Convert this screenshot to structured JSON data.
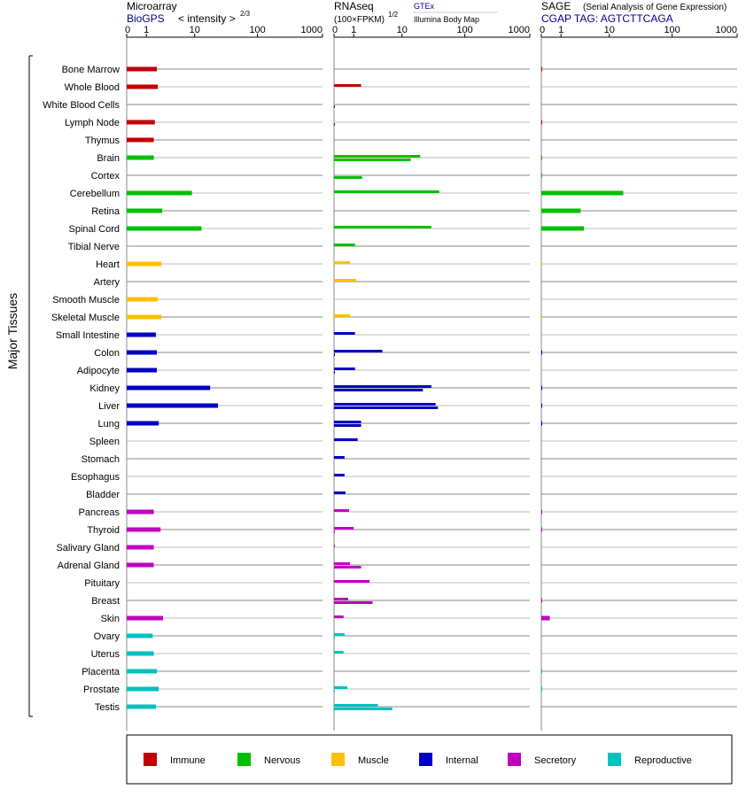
{
  "headers": {
    "microarray": {
      "title": "Microarray",
      "source": "BioGPS",
      "metric": "< intensity >",
      "metric_exp": "2/3"
    },
    "rnaseq": {
      "title": "RNAseq",
      "metric": "(100×FPKM)",
      "metric_exp": "1/2",
      "source_a": "GTEx",
      "source_b": "Illumina Body Map"
    },
    "sage": {
      "title": "SAGE",
      "subtitle": "(Serial Analysis of Gene Expression)",
      "tag": "CGAP TAG: AGTCTTCAGA"
    }
  },
  "axis_ticks": [
    "0",
    "1",
    "10",
    "100",
    "1000"
  ],
  "y_group_label": "Major Tissues",
  "legend": [
    {
      "label": "Immune",
      "color": "#c00000"
    },
    {
      "label": "Nervous",
      "color": "#00c000"
    },
    {
      "label": "Muscle",
      "color": "#ffc000"
    },
    {
      "label": "Internal",
      "color": "#0000c0"
    },
    {
      "label": "Secretory",
      "color": "#c000c0"
    },
    {
      "label": "Reproductive",
      "color": "#00c0c0"
    }
  ],
  "chart_data": {
    "type": "bar",
    "x_scale": "log1p",
    "xlim": [
      0,
      1000
    ],
    "panels": [
      "Microarray",
      "RNAseq GTEx",
      "RNAseq Illumina Body Map",
      "SAGE"
    ],
    "tissues": [
      {
        "name": "Bone Marrow",
        "system": "Immune",
        "microarray": 1.9,
        "gtex": null,
        "ibm": null,
        "sage": 0.02
      },
      {
        "name": "Whole Blood",
        "system": "Immune",
        "microarray": 2.0,
        "gtex": 1.6,
        "ibm": null,
        "sage": null
      },
      {
        "name": "White Blood Cells",
        "system": "Immune",
        "microarray": null,
        "gtex": null,
        "ibm": 0.02,
        "sage": null
      },
      {
        "name": "Lymph Node",
        "system": "Immune",
        "microarray": 1.7,
        "gtex": null,
        "ibm": 0.02,
        "sage": 0.02
      },
      {
        "name": "Thymus",
        "system": "Immune",
        "microarray": 1.6,
        "gtex": null,
        "ibm": null,
        "sage": null
      },
      {
        "name": "Brain",
        "system": "Nervous",
        "microarray": 1.6,
        "gtex": 20,
        "ibm": 14,
        "sage": 0.01
      },
      {
        "name": "Cortex",
        "system": "Nervous",
        "microarray": null,
        "gtex": null,
        "ibm": 1.7,
        "sage": 0.01
      },
      {
        "name": "Cerebellum",
        "system": "Nervous",
        "microarray": 9,
        "gtex": 40,
        "ibm": null,
        "sage": 17
      },
      {
        "name": "Retina",
        "system": "Nervous",
        "microarray": 2.5,
        "gtex": null,
        "ibm": null,
        "sage": 3.0
      },
      {
        "name": "Spinal Cord",
        "system": "Nervous",
        "microarray": 13,
        "gtex": 30,
        "ibm": null,
        "sage": 3.5
      },
      {
        "name": "Tibial Nerve",
        "system": "Nervous",
        "microarray": null,
        "gtex": 1.1,
        "ibm": null,
        "sage": null
      },
      {
        "name": "Heart",
        "system": "Muscle",
        "microarray": 2.4,
        "gtex": 0.75,
        "ibm": 0.02,
        "sage": 0.01
      },
      {
        "name": "Artery",
        "system": "Muscle",
        "microarray": null,
        "gtex": 1.2,
        "ibm": null,
        "sage": null
      },
      {
        "name": "Smooth Muscle",
        "system": "Muscle",
        "microarray": 2.0,
        "gtex": null,
        "ibm": null,
        "sage": null
      },
      {
        "name": "Skeletal Muscle",
        "system": "Muscle",
        "microarray": 2.4,
        "gtex": 0.75,
        "ibm": 0.02,
        "sage": 0.01
      },
      {
        "name": "Small Intestine",
        "system": "Internal",
        "microarray": 1.8,
        "gtex": 1.1,
        "ibm": null,
        "sage": null
      },
      {
        "name": "Colon",
        "system": "Internal",
        "microarray": 1.9,
        "gtex": 4.5,
        "ibm": 0.03,
        "sage": 0.02
      },
      {
        "name": "Adipocyte",
        "system": "Internal",
        "microarray": 1.9,
        "gtex": 1.1,
        "ibm": 0.03,
        "sage": null
      },
      {
        "name": "Kidney",
        "system": "Internal",
        "microarray": 18,
        "gtex": 30,
        "ibm": 22,
        "sage": 0.02
      },
      {
        "name": "Liver",
        "system": "Internal",
        "microarray": 24,
        "gtex": 35,
        "ibm": 38,
        "sage": 0.03
      },
      {
        "name": "Lung",
        "system": "Internal",
        "microarray": 2.1,
        "gtex": 1.6,
        "ibm": 1.6,
        "sage": 0.02
      },
      {
        "name": "Spleen",
        "system": "Internal",
        "microarray": null,
        "gtex": 1.3,
        "ibm": null,
        "sage": null
      },
      {
        "name": "Stomach",
        "system": "Internal",
        "microarray": null,
        "gtex": 0.45,
        "ibm": null,
        "sage": null
      },
      {
        "name": "Esophagus",
        "system": "Internal",
        "microarray": null,
        "gtex": 0.45,
        "ibm": null,
        "sage": null
      },
      {
        "name": "Bladder",
        "system": "Internal",
        "microarray": null,
        "gtex": 0.5,
        "ibm": null,
        "sage": null
      },
      {
        "name": "Pancreas",
        "system": "Secretory",
        "microarray": 1.6,
        "gtex": 0.7,
        "ibm": null,
        "sage": 0.02
      },
      {
        "name": "Thyroid",
        "system": "Secretory",
        "microarray": 2.3,
        "gtex": 1.0,
        "ibm": 0.02,
        "sage": 0.02
      },
      {
        "name": "Salivary Gland",
        "system": "Secretory",
        "microarray": 1.6,
        "gtex": 0.03,
        "ibm": null,
        "sage": null
      },
      {
        "name": "Adrenal Gland",
        "system": "Secretory",
        "microarray": 1.6,
        "gtex": 0.75,
        "ibm": 1.6,
        "sage": null
      },
      {
        "name": "Pituitary",
        "system": "Secretory",
        "microarray": null,
        "gtex": 2.5,
        "ibm": null,
        "sage": null
      },
      {
        "name": "Breast",
        "system": "Secretory",
        "microarray": null,
        "gtex": 0.65,
        "ibm": 2.9,
        "sage": 0.02
      },
      {
        "name": "Skin",
        "system": "Secretory",
        "microarray": 2.6,
        "gtex": 0.4,
        "ibm": null,
        "sage": 0.35
      },
      {
        "name": "Ovary",
        "system": "Reproductive",
        "microarray": 1.5,
        "gtex": 0.45,
        "ibm": 0.02,
        "sage": null
      },
      {
        "name": "Uterus",
        "system": "Reproductive",
        "microarray": 1.6,
        "gtex": 0.4,
        "ibm": null,
        "sage": null
      },
      {
        "name": "Placenta",
        "system": "Reproductive",
        "microarray": 1.9,
        "gtex": null,
        "ibm": null,
        "sage": 0.02
      },
      {
        "name": "Prostate",
        "system": "Reproductive",
        "microarray": 2.1,
        "gtex": 0.6,
        "ibm": 0.02,
        "sage": 0.02
      },
      {
        "name": "Testis",
        "system": "Reproductive",
        "microarray": 1.8,
        "gtex": 3.7,
        "ibm": 6.8,
        "sage": null
      }
    ]
  }
}
